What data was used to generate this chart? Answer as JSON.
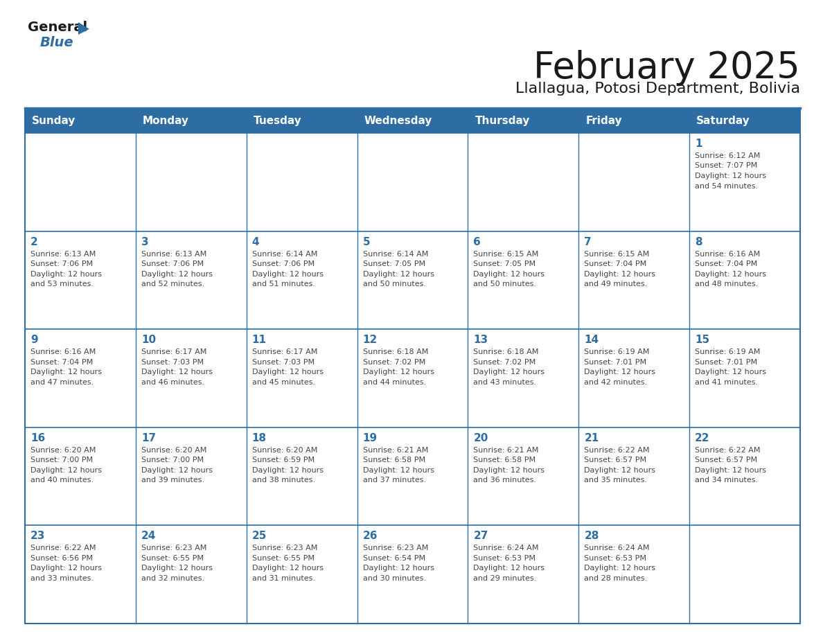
{
  "title": "February 2025",
  "subtitle": "Llallagua, Potosi Department, Bolivia",
  "header_bg": "#2E6DA4",
  "header_text_color": "#FFFFFF",
  "cell_bg": "#FFFFFF",
  "border_color": "#2E6DA4",
  "text_color": "#444444",
  "day_num_color": "#2E6DA4",
  "days_of_week": [
    "Sunday",
    "Monday",
    "Tuesday",
    "Wednesday",
    "Thursday",
    "Friday",
    "Saturday"
  ],
  "calendar_data": [
    [
      null,
      null,
      null,
      null,
      null,
      null,
      {
        "day": 1,
        "sunrise": "6:12 AM",
        "sunset": "7:07 PM",
        "daylight": "12 hours\nand 54 minutes."
      }
    ],
    [
      {
        "day": 2,
        "sunrise": "6:13 AM",
        "sunset": "7:06 PM",
        "daylight": "12 hours\nand 53 minutes."
      },
      {
        "day": 3,
        "sunrise": "6:13 AM",
        "sunset": "7:06 PM",
        "daylight": "12 hours\nand 52 minutes."
      },
      {
        "day": 4,
        "sunrise": "6:14 AM",
        "sunset": "7:06 PM",
        "daylight": "12 hours\nand 51 minutes."
      },
      {
        "day": 5,
        "sunrise": "6:14 AM",
        "sunset": "7:05 PM",
        "daylight": "12 hours\nand 50 minutes."
      },
      {
        "day": 6,
        "sunrise": "6:15 AM",
        "sunset": "7:05 PM",
        "daylight": "12 hours\nand 50 minutes."
      },
      {
        "day": 7,
        "sunrise": "6:15 AM",
        "sunset": "7:04 PM",
        "daylight": "12 hours\nand 49 minutes."
      },
      {
        "day": 8,
        "sunrise": "6:16 AM",
        "sunset": "7:04 PM",
        "daylight": "12 hours\nand 48 minutes."
      }
    ],
    [
      {
        "day": 9,
        "sunrise": "6:16 AM",
        "sunset": "7:04 PM",
        "daylight": "12 hours\nand 47 minutes."
      },
      {
        "day": 10,
        "sunrise": "6:17 AM",
        "sunset": "7:03 PM",
        "daylight": "12 hours\nand 46 minutes."
      },
      {
        "day": 11,
        "sunrise": "6:17 AM",
        "sunset": "7:03 PM",
        "daylight": "12 hours\nand 45 minutes."
      },
      {
        "day": 12,
        "sunrise": "6:18 AM",
        "sunset": "7:02 PM",
        "daylight": "12 hours\nand 44 minutes."
      },
      {
        "day": 13,
        "sunrise": "6:18 AM",
        "sunset": "7:02 PM",
        "daylight": "12 hours\nand 43 minutes."
      },
      {
        "day": 14,
        "sunrise": "6:19 AM",
        "sunset": "7:01 PM",
        "daylight": "12 hours\nand 42 minutes."
      },
      {
        "day": 15,
        "sunrise": "6:19 AM",
        "sunset": "7:01 PM",
        "daylight": "12 hours\nand 41 minutes."
      }
    ],
    [
      {
        "day": 16,
        "sunrise": "6:20 AM",
        "sunset": "7:00 PM",
        "daylight": "12 hours\nand 40 minutes."
      },
      {
        "day": 17,
        "sunrise": "6:20 AM",
        "sunset": "7:00 PM",
        "daylight": "12 hours\nand 39 minutes."
      },
      {
        "day": 18,
        "sunrise": "6:20 AM",
        "sunset": "6:59 PM",
        "daylight": "12 hours\nand 38 minutes."
      },
      {
        "day": 19,
        "sunrise": "6:21 AM",
        "sunset": "6:58 PM",
        "daylight": "12 hours\nand 37 minutes."
      },
      {
        "day": 20,
        "sunrise": "6:21 AM",
        "sunset": "6:58 PM",
        "daylight": "12 hours\nand 36 minutes."
      },
      {
        "day": 21,
        "sunrise": "6:22 AM",
        "sunset": "6:57 PM",
        "daylight": "12 hours\nand 35 minutes."
      },
      {
        "day": 22,
        "sunrise": "6:22 AM",
        "sunset": "6:57 PM",
        "daylight": "12 hours\nand 34 minutes."
      }
    ],
    [
      {
        "day": 23,
        "sunrise": "6:22 AM",
        "sunset": "6:56 PM",
        "daylight": "12 hours\nand 33 minutes."
      },
      {
        "day": 24,
        "sunrise": "6:23 AM",
        "sunset": "6:55 PM",
        "daylight": "12 hours\nand 32 minutes."
      },
      {
        "day": 25,
        "sunrise": "6:23 AM",
        "sunset": "6:55 PM",
        "daylight": "12 hours\nand 31 minutes."
      },
      {
        "day": 26,
        "sunrise": "6:23 AM",
        "sunset": "6:54 PM",
        "daylight": "12 hours\nand 30 minutes."
      },
      {
        "day": 27,
        "sunrise": "6:24 AM",
        "sunset": "6:53 PM",
        "daylight": "12 hours\nand 29 minutes."
      },
      {
        "day": 28,
        "sunrise": "6:24 AM",
        "sunset": "6:53 PM",
        "daylight": "12 hours\nand 28 minutes."
      },
      null
    ]
  ],
  "num_rows": 5,
  "num_cols": 7
}
